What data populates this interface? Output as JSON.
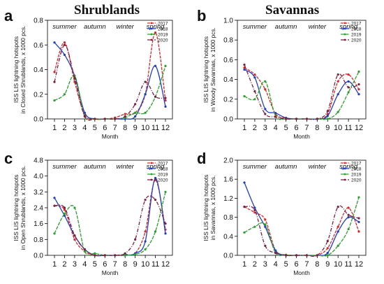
{
  "figure": {
    "section_titles": [
      "Shrublands",
      "Savannas"
    ]
  },
  "chart_data": [
    {
      "type": "line",
      "panel_label": "a",
      "title": "",
      "xlabel": "Month",
      "ylabel": "ISS LIS lightning hotspots in Closed Shrublands, x 1000 pcs.",
      "xlim": [
        1,
        12
      ],
      "ylim": [
        0,
        0.8
      ],
      "xticks": [
        1,
        2,
        3,
        4,
        5,
        6,
        7,
        8,
        9,
        10,
        11,
        12
      ],
      "yticks": [
        0.0,
        0.2,
        0.4,
        0.6,
        0.8
      ],
      "seasons": [
        "summer",
        "autumn",
        "winter",
        "spring"
      ],
      "legend": "top-right",
      "x": [
        1,
        2,
        3,
        4,
        5,
        6,
        7,
        8,
        9,
        10,
        11,
        12
      ],
      "series": [
        {
          "name": "2017",
          "color": "#d62728",
          "values": [
            0.38,
            0.62,
            0.3,
            0.03,
            0.0,
            0.0,
            0.01,
            0.04,
            0.05,
            0.2,
            0.7,
            0.15
          ]
        },
        {
          "name": "2018",
          "color": "#1f3fbf",
          "values": [
            0.62,
            0.52,
            0.35,
            0.05,
            0.0,
            0.0,
            0.0,
            0.0,
            0.02,
            0.2,
            0.43,
            0.1
          ]
        },
        {
          "name": "2019",
          "color": "#2ca02c",
          "values": [
            0.15,
            0.2,
            0.35,
            0.02,
            0.0,
            0.0,
            0.0,
            0.01,
            0.05,
            0.05,
            0.18,
            0.43
          ]
        },
        {
          "name": "2020",
          "color": "#7b1f3f",
          "values": [
            0.3,
            0.6,
            0.33,
            0.02,
            0.0,
            0.0,
            0.0,
            0.02,
            0.12,
            0.3,
            0.18,
            0.17
          ]
        }
      ]
    },
    {
      "type": "line",
      "panel_label": "b",
      "title": "",
      "xlabel": "Month",
      "ylabel": "ISS LIS lightning hotspots in Woody Savannas, x 1000 pcs.",
      "xlim": [
        1,
        12
      ],
      "ylim": [
        0,
        1.0
      ],
      "xticks": [
        1,
        2,
        3,
        4,
        5,
        6,
        7,
        8,
        9,
        10,
        11,
        12
      ],
      "yticks": [
        0.0,
        0.2,
        0.4,
        0.6,
        0.8,
        1.0
      ],
      "seasons": [
        "summer",
        "autumn",
        "winter",
        "spring"
      ],
      "legend": "top-right",
      "x": [
        1,
        2,
        3,
        4,
        5,
        6,
        7,
        8,
        9,
        10,
        11,
        12
      ],
      "series": [
        {
          "name": "2017",
          "color": "#d62728",
          "values": [
            0.52,
            0.45,
            0.3,
            0.05,
            0.01,
            0.0,
            0.0,
            0.0,
            0.05,
            0.38,
            0.45,
            0.3
          ]
        },
        {
          "name": "2018",
          "color": "#1f3fbf",
          "values": [
            0.5,
            0.42,
            0.1,
            0.06,
            0.01,
            0.0,
            0.0,
            0.0,
            0.03,
            0.25,
            0.38,
            0.25
          ]
        },
        {
          "name": "2019",
          "color": "#2ca02c",
          "values": [
            0.23,
            0.2,
            0.38,
            0.03,
            0.0,
            0.0,
            0.0,
            0.0,
            0.0,
            0.07,
            0.27,
            0.48
          ]
        },
        {
          "name": "2020",
          "color": "#7b1f3f",
          "values": [
            0.55,
            0.28,
            0.05,
            0.02,
            0.0,
            0.0,
            0.0,
            0.0,
            0.08,
            0.45,
            0.32,
            0.35
          ]
        }
      ]
    },
    {
      "type": "line",
      "panel_label": "c",
      "title": "",
      "xlabel": "Month",
      "ylabel": "ISS LIS lightning hotspots in Open Shrublands, x 1000 pcs.",
      "xlim": [
        1,
        12
      ],
      "ylim": [
        0,
        4.8
      ],
      "xticks": [
        1,
        2,
        3,
        4,
        5,
        6,
        7,
        8,
        9,
        10,
        11,
        12
      ],
      "yticks": [
        0.0,
        0.8,
        1.6,
        2.4,
        3.2,
        4.0,
        4.8
      ],
      "seasons": [
        "summer",
        "autumn",
        "winter",
        "spring"
      ],
      "legend": "top-right",
      "x": [
        1,
        2,
        3,
        4,
        5,
        6,
        7,
        8,
        9,
        10,
        11,
        12
      ],
      "series": [
        {
          "name": "2017",
          "color": "#d62728",
          "values": [
            2.5,
            2.3,
            0.8,
            0.2,
            0.0,
            0.0,
            0.0,
            0.05,
            0.1,
            1.2,
            3.8,
            1.3
          ]
        },
        {
          "name": "2018",
          "color": "#1f3fbf",
          "values": [
            2.9,
            2.0,
            1.0,
            0.3,
            0.0,
            0.0,
            0.0,
            0.0,
            0.1,
            0.7,
            3.9,
            1.1
          ]
        },
        {
          "name": "2019",
          "color": "#2ca02c",
          "values": [
            1.1,
            2.1,
            2.4,
            0.2,
            0.1,
            0.0,
            0.0,
            0.0,
            0.05,
            0.3,
            1.2,
            3.2
          ]
        },
        {
          "name": "2020",
          "color": "#7b1f3f",
          "values": [
            2.5,
            2.4,
            1.0,
            0.3,
            0.0,
            0.0,
            0.0,
            0.1,
            0.8,
            2.8,
            2.8,
            1.6
          ]
        }
      ]
    },
    {
      "type": "line",
      "panel_label": "d",
      "title": "",
      "xlabel": "Month",
      "ylabel": "ISS LIS lightning hotspots in Savannas, x 1000 pcs.",
      "xlim": [
        1,
        12
      ],
      "ylim": [
        0,
        2.0
      ],
      "xticks": [
        1,
        2,
        3,
        4,
        5,
        6,
        7,
        8,
        9,
        10,
        11,
        12
      ],
      "yticks": [
        0.0,
        0.4,
        0.8,
        1.2,
        1.6,
        2.0
      ],
      "seasons": [
        "summer",
        "autumn",
        "winter",
        "spring"
      ],
      "legend": "top-right",
      "x": [
        1,
        2,
        3,
        4,
        5,
        6,
        7,
        8,
        9,
        10,
        11,
        12
      ],
      "series": [
        {
          "name": "2017",
          "color": "#d62728",
          "values": [
            1.02,
            0.9,
            0.75,
            0.1,
            0.01,
            0.0,
            0.0,
            0.0,
            0.15,
            0.6,
            1.0,
            0.5
          ]
        },
        {
          "name": "2018",
          "color": "#1f3fbf",
          "values": [
            1.53,
            1.0,
            0.6,
            0.1,
            0.0,
            0.0,
            0.0,
            0.0,
            0.05,
            0.5,
            0.8,
            0.7
          ]
        },
        {
          "name": "2019",
          "color": "#2ca02c",
          "values": [
            0.48,
            0.6,
            0.65,
            0.05,
            0.01,
            0.0,
            0.0,
            0.0,
            0.0,
            0.2,
            0.55,
            1.22
          ]
        },
        {
          "name": "2020",
          "color": "#7b1f3f",
          "values": [
            1.02,
            0.95,
            0.2,
            0.05,
            0.0,
            0.0,
            0.0,
            0.0,
            0.3,
            1.02,
            0.85,
            0.78
          ]
        }
      ]
    }
  ]
}
